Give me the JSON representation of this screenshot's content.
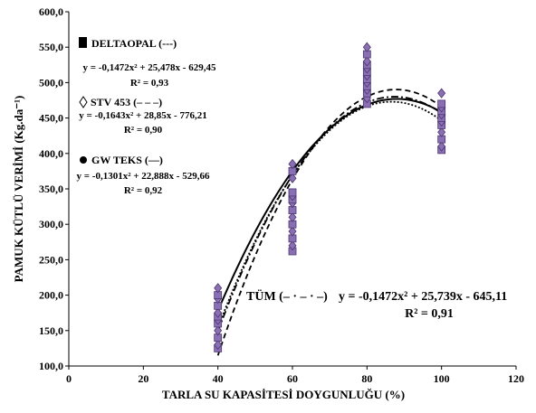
{
  "chart_data": {
    "type": "scatter",
    "xlabel": "TARLA SU KAPASİTESİ DOYGUNLUĞU (%)",
    "ylabel": "PAMUK KÜTLÜ VERİMİ   (Kg.da⁻¹)",
    "xlim": [
      0,
      120
    ],
    "ylim": [
      100,
      600
    ],
    "xticks": [
      "0",
      "20",
      "40",
      "60",
      "80",
      "100",
      "120"
    ],
    "yticks": [
      "100,0",
      "150,0",
      "200,0",
      "250,0",
      "300,0",
      "350,0",
      "400,0",
      "450,0",
      "500,0",
      "550,0",
      "600,0"
    ],
    "grid": false,
    "marker_color": "#8b6fb3",
    "points_x": [
      40,
      60,
      80,
      100
    ],
    "points_y": [
      [
        125,
        130,
        140,
        150,
        160,
        165,
        170,
        175,
        185,
        195,
        200,
        210
      ],
      [
        262,
        270,
        280,
        290,
        300,
        310,
        320,
        330,
        335,
        340,
        345,
        365,
        375,
        385
      ],
      [
        470,
        478,
        485,
        490,
        495,
        500,
        505,
        510,
        515,
        520,
        525,
        530,
        540,
        550
      ],
      [
        405,
        410,
        420,
        430,
        440,
        445,
        450,
        455,
        460,
        465,
        470,
        485
      ]
    ],
    "series": [
      {
        "name": "DELTAOPAL (---)",
        "marker": "square",
        "equation": "y = -0,1472x² + 25,478x - 629,45",
        "r2": "R² = 0,93",
        "a": -0.1472,
        "b": 25.478,
        "c": -629.45,
        "dash": "2,2"
      },
      {
        "name": "STV 453 (– – –)",
        "marker": "diamond",
        "equation": "y = -0,1643x² + 28,85x - 776,21",
        "r2": "R² = 0,90",
        "a": -0.1643,
        "b": 28.85,
        "c": -776.21,
        "dash": "6,4"
      },
      {
        "name": "GW TEKS (—)",
        "marker": "circle",
        "equation": "y = -0,1301x² + 22,888x - 529,66",
        "r2": "R² = 0,92",
        "a": -0.1301,
        "b": 22.888,
        "c": -529.66,
        "dash": ""
      },
      {
        "name": "TÜM (– · – · –)",
        "marker": "none",
        "equation": "y = -0,1472x² + 25,739x - 645,11",
        "r2": "R² = 0,91",
        "a": -0.1472,
        "b": 25.739,
        "c": -645.11,
        "dash": "8,3,2,3"
      }
    ]
  }
}
